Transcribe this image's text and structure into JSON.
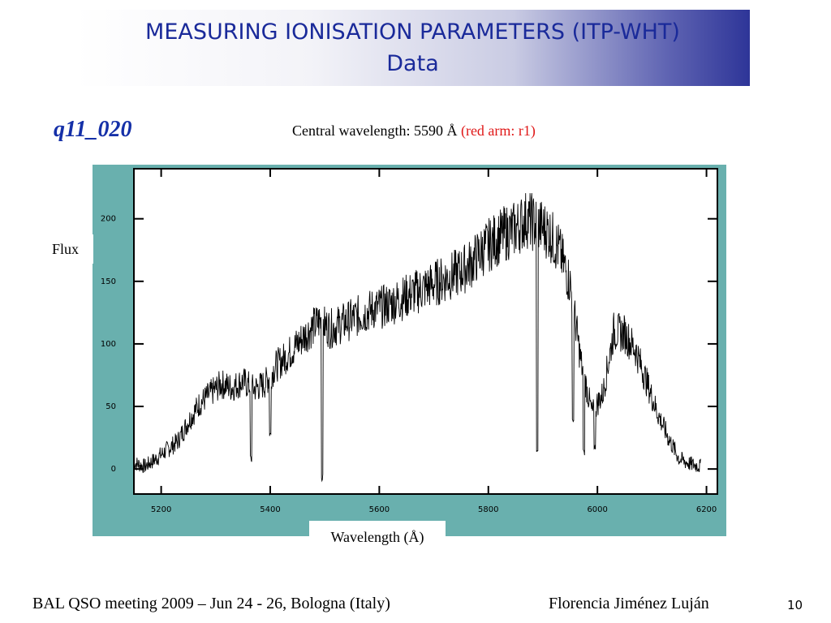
{
  "title": {
    "line1": "MEASURING IONISATION PARAMETERS (ITP-WHT)",
    "line2": "Data"
  },
  "object_name": "q11_020",
  "central_wavelength": {
    "text": "Central wavelength: 5590 Å",
    "note": "(red arm: r1)"
  },
  "colors": {
    "title_text": "#1a2a9a",
    "object_name": "#1530a8",
    "note_red": "#e01818",
    "plot_background": "#69b0ae"
  },
  "chart_data": {
    "type": "line",
    "xlabel": "Wavelength (Å)",
    "ylabel": "Flux",
    "xlim": [
      5150,
      6220
    ],
    "ylim": [
      -20,
      240
    ],
    "x_ticks": [
      5200,
      5400,
      5600,
      5800,
      6000,
      6200
    ],
    "y_ticks": [
      0,
      50,
      100,
      150,
      200
    ],
    "grid": false,
    "series": [
      {
        "x": [
          5150,
          5170,
          5190,
          5210,
          5230,
          5250,
          5270,
          5290,
          5310,
          5330,
          5350,
          5370,
          5390,
          5410,
          5430,
          5450,
          5470,
          5490,
          5510,
          5530,
          5550,
          5570,
          5590,
          5610,
          5630,
          5650,
          5670,
          5690,
          5710,
          5730,
          5750,
          5770,
          5790,
          5810,
          5830,
          5850,
          5870,
          5890,
          5910,
          5930,
          5950,
          5970,
          5990,
          6010,
          6030,
          6050,
          6070,
          6090,
          6110,
          6130,
          6150,
          6170,
          6190
        ],
        "y": [
          5,
          2,
          8,
          15,
          22,
          38,
          52,
          60,
          68,
          65,
          70,
          64,
          68,
          82,
          90,
          100,
          110,
          118,
          112,
          116,
          120,
          124,
          128,
          130,
          134,
          138,
          142,
          146,
          150,
          154,
          158,
          165,
          175,
          182,
          188,
          192,
          200,
          195,
          190,
          175,
          148,
          85,
          45,
          60,
          110,
          108,
          95,
          70,
          45,
          25,
          8,
          4,
          2
        ]
      }
    ],
    "absorption_dips": [
      {
        "x": 5365,
        "y": 5
      },
      {
        "x": 5400,
        "y": 25
      },
      {
        "x": 5495,
        "y": -10
      },
      {
        "x": 5890,
        "y": 10
      },
      {
        "x": 5955,
        "y": 35
      },
      {
        "x": 5975,
        "y": 10
      },
      {
        "x": 5995,
        "y": 15
      }
    ]
  },
  "footer": {
    "meeting": "BAL QSO meeting 2009 – Jun 24 - 26, Bologna (Italy)",
    "author": "Florencia Jiménez Luján",
    "page": "10"
  }
}
